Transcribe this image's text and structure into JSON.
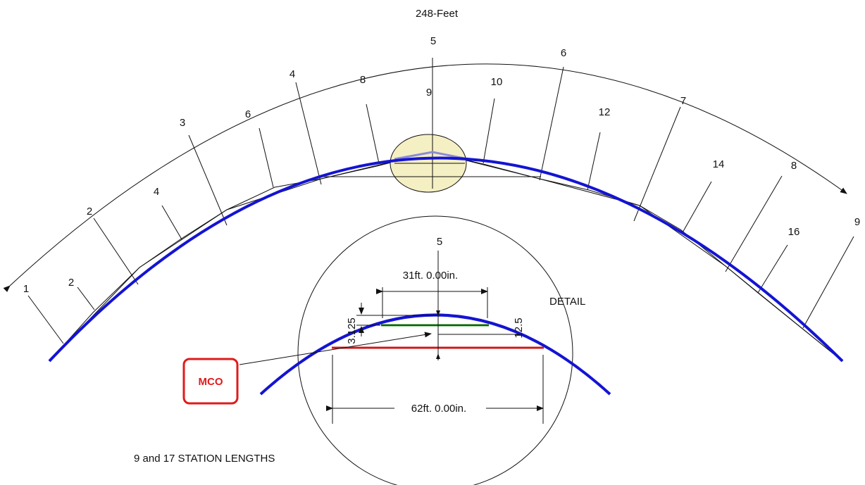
{
  "arc_length_label": "248-Feet",
  "outer_station_labels": [
    "1",
    "2",
    "3",
    "4",
    "5",
    "6",
    "7",
    "8",
    "9"
  ],
  "inner_station_labels": [
    "2",
    "4",
    "6",
    "8",
    "9",
    "10",
    "12",
    "14",
    "16"
  ],
  "detail": {
    "title": "DETAIL",
    "center_label": "5",
    "upper_chord_label": "31ft. 0.00in.",
    "lower_chord_label": "62ft. 0.00in.",
    "upper_offset_label": "3.125",
    "lower_offset_label": "12.5",
    "callout_label": "MCO"
  },
  "caption": "9 and 17 STATION LENGTHS",
  "colors": {
    "curve": "#1414d2",
    "upper_chord": "#1f9e1f",
    "lower_chord": "#cc1a1a",
    "callout": "#e01b1b",
    "highlight_fill": "#f5efc4",
    "lines": "#111111"
  }
}
